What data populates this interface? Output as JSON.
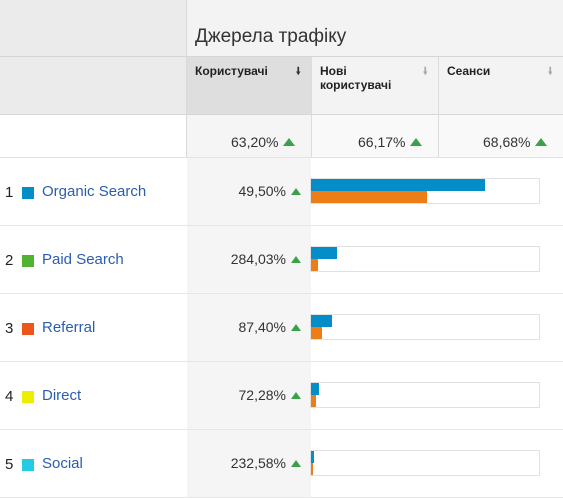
{
  "group_title": "Джерела трафіку",
  "columns": {
    "users": "Користувачі",
    "new_users": "Нові користувачі",
    "sessions": "Сеанси"
  },
  "totals": {
    "users": "63,20%",
    "new_users": "66,17%",
    "sessions": "68,68%"
  },
  "colors": {
    "bar_users": "#058dc7",
    "bar_new_users": "#ed7e17",
    "trend_up": "#3aa14a",
    "link": "#2a5db0"
  },
  "icons": {
    "sort_active": "sort-down-arrow-icon",
    "trend": "trend-up-arrow-icon"
  },
  "rows": [
    {
      "index": "1",
      "channel": "Organic Search",
      "color": "#058dc7",
      "users_change": "49,50%",
      "bar_users": 0.765,
      "bar_new_users": 0.51
    },
    {
      "index": "2",
      "channel": "Paid Search",
      "color": "#50b432",
      "users_change": "284,03%",
      "bar_users": 0.115,
      "bar_new_users": 0.03
    },
    {
      "index": "3",
      "channel": "Referral",
      "color": "#ed561b",
      "users_change": "87,40%",
      "bar_users": 0.09,
      "bar_new_users": 0.05
    },
    {
      "index": "4",
      "channel": "Direct",
      "color": "#edef00",
      "users_change": "72,28%",
      "bar_users": 0.035,
      "bar_new_users": 0.02
    },
    {
      "index": "5",
      "channel": "Social",
      "color": "#24cbe5",
      "users_change": "232,58%",
      "bar_users": 0.012,
      "bar_new_users": 0.008
    }
  ]
}
